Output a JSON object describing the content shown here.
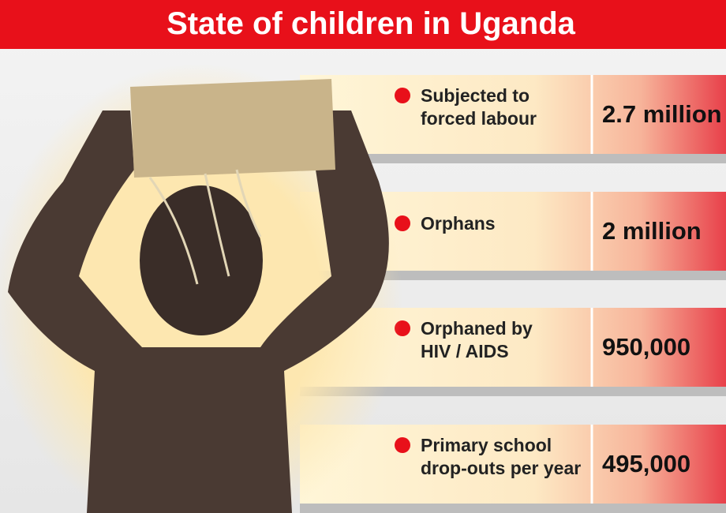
{
  "header": {
    "title": "State of children in Uganda"
  },
  "rows": [
    {
      "label_lines": [
        "Subjected to",
        "forced labour"
      ],
      "value": "2.7 million"
    },
    {
      "label_lines": [
        "Orphans"
      ],
      "value": "2 million"
    },
    {
      "label_lines": [
        "Orphaned by",
        "HIV / AIDS"
      ],
      "value": "950,000"
    },
    {
      "label_lines": [
        "Primary school",
        "drop-outs per year"
      ],
      "value": "495,000"
    }
  ]
}
